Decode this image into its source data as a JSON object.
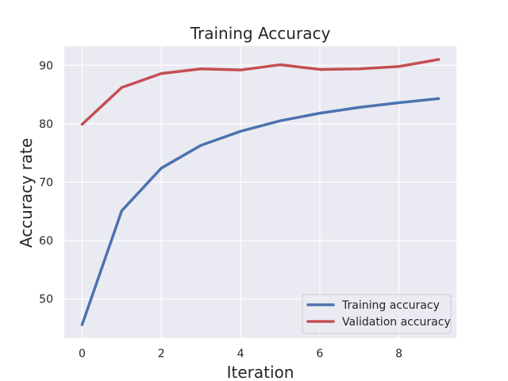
{
  "chart_data": {
    "type": "line",
    "title": "Training Accuracy",
    "xlabel": "Iteration",
    "ylabel": "Accuracy rate",
    "x": [
      0,
      1,
      2,
      3,
      4,
      5,
      6,
      7,
      8,
      9
    ],
    "series": [
      {
        "name": "Training accuracy",
        "color": "#4c72b0",
        "values": [
          45.6,
          65.1,
          72.4,
          76.3,
          78.7,
          80.5,
          81.8,
          82.8,
          83.6,
          84.3
        ]
      },
      {
        "name": "Validation accuracy",
        "color": "#c44e52",
        "values": [
          79.9,
          86.2,
          88.6,
          89.4,
          89.2,
          90.1,
          89.3,
          89.4,
          89.8,
          91.0
        ]
      }
    ],
    "xlim": [
      -0.45,
      9.45
    ],
    "ylim": [
      43.3,
      93.3
    ],
    "xticks": [
      0,
      2,
      4,
      6,
      8
    ],
    "yticks": [
      50,
      60,
      70,
      80,
      90
    ],
    "grid": true,
    "legend_position": "lower-right",
    "style": {
      "plot_background": "#eaeaf2",
      "grid_color": "#ffffff"
    }
  }
}
